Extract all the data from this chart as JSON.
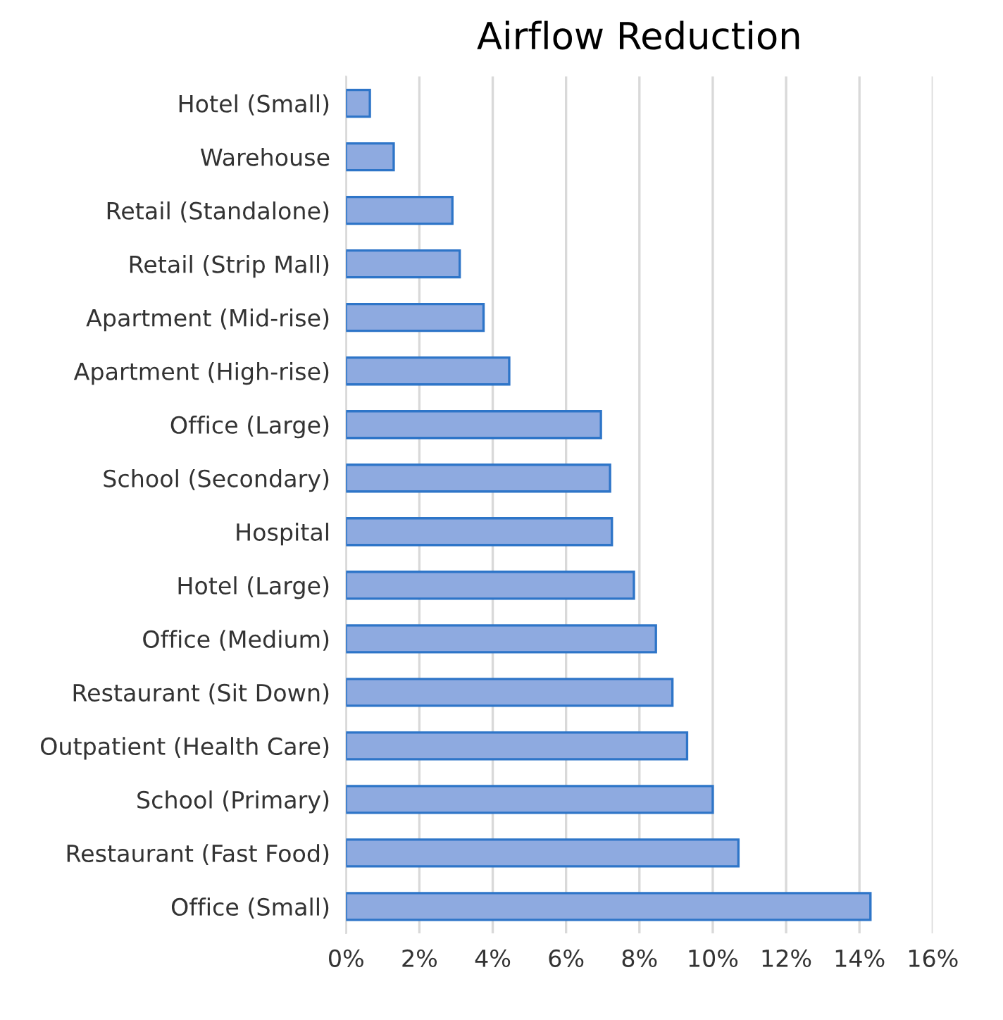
{
  "chart_data": {
    "type": "bar",
    "orientation": "horizontal",
    "title": "Airflow Reduction",
    "categories": [
      "Hotel (Small)",
      "Warehouse",
      "Retail (Standalone)",
      "Retail (Strip Mall)",
      "Apartment (Mid-rise)",
      "Apartment (High-rise)",
      "Office (Large)",
      "School (Secondary)",
      "Hospital",
      "Hotel (Large)",
      "Office (Medium)",
      "Restaurant (Sit Down)",
      "Outpatient (Health Care)",
      "School (Primary)",
      "Restaurant (Fast Food)",
      "Office (Small)"
    ],
    "values": [
      0.65,
      1.3,
      2.9,
      3.1,
      3.75,
      4.45,
      6.95,
      7.2,
      7.25,
      7.85,
      8.45,
      8.9,
      9.3,
      10.0,
      10.7,
      14.3
    ],
    "color": "#8eaae0",
    "xlim": [
      0,
      16
    ],
    "xticks": [
      {
        "value": 0,
        "label": "0%"
      },
      {
        "value": 2,
        "label": "2%"
      },
      {
        "value": 4,
        "label": "4%"
      },
      {
        "value": 6,
        "label": "6%"
      },
      {
        "value": 8,
        "label": "8%"
      },
      {
        "value": 10,
        "label": "10%"
      },
      {
        "value": 12,
        "label": "12%"
      },
      {
        "value": 14,
        "label": "14%"
      },
      {
        "value": 16,
        "label": "16%"
      }
    ],
    "grid": "x"
  }
}
